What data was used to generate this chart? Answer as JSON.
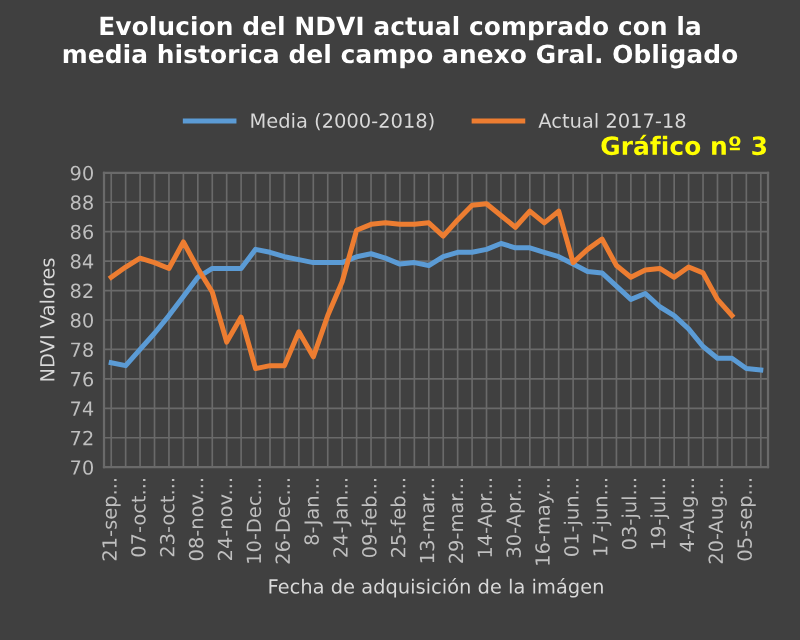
{
  "chart_data": {
    "type": "line",
    "title": "Evolucion del NDVI actual comprado con la\nmedia historica del campo anexo Gral. Obligado",
    "xlabel": "Fecha de adquisición de la imágen",
    "ylabel": "NDVI Valores",
    "annotations": [
      "Gráfico nº 3"
    ],
    "categories": [
      "21-sep...",
      null,
      "07-oct...",
      null,
      "23-oct...",
      null,
      "08-nov...",
      null,
      "24-nov...",
      null,
      "10-Dec...",
      null,
      "26-Dec...",
      null,
      "8-Jan...",
      null,
      "24-Jan...",
      null,
      "09-feb...",
      null,
      "25-feb...",
      null,
      "13-mar...",
      null,
      "29-mar...",
      null,
      "14-Apr...",
      null,
      "30-Apr...",
      null,
      "16-may...",
      null,
      "01-jun...",
      null,
      "17-jun...",
      null,
      "03-jul...",
      null,
      "19-jul...",
      null,
      "4-Aug...",
      null,
      "20-Aug...",
      null,
      "05-sep...",
      null
    ],
    "series": [
      {
        "name": "Media (2000-2018)",
        "color": "#5b9bd5",
        "values": [
          77.1,
          76.9,
          78.0,
          79.1,
          80.3,
          81.6,
          82.9,
          83.5,
          83.5,
          83.5,
          84.8,
          84.6,
          84.3,
          84.1,
          83.9,
          83.9,
          83.9,
          84.3,
          84.5,
          84.2,
          83.8,
          83.9,
          83.7,
          84.3,
          84.6,
          84.6,
          84.8,
          85.2,
          84.9,
          84.9,
          84.6,
          84.3,
          83.8,
          83.3,
          83.2,
          82.3,
          81.4,
          81.8,
          80.9,
          80.3,
          79.4,
          78.2,
          77.4,
          77.4,
          76.7,
          76.6
        ]
      },
      {
        "name": "Actual 2017-18",
        "color": "#ed7d31",
        "values": [
          82.9,
          83.6,
          84.2,
          83.9,
          83.5,
          85.3,
          83.5,
          81.9,
          78.5,
          80.2,
          76.7,
          76.9,
          76.9,
          79.2,
          77.5,
          80.3,
          82.6,
          86.1,
          86.5,
          86.6,
          86.5,
          86.5,
          86.6,
          85.7,
          86.8,
          87.8,
          87.9,
          87.1,
          86.3,
          87.4,
          86.6,
          87.4,
          83.9,
          84.8,
          85.5,
          83.7,
          82.9,
          83.4,
          83.5,
          82.9,
          83.6,
          83.2,
          81.4,
          80.3,
          null,
          null
        ]
      }
    ],
    "ylim": [
      70,
      90
    ],
    "yticks": [
      70,
      72,
      74,
      76,
      78,
      80,
      82,
      84,
      86,
      88,
      90
    ],
    "grid": true,
    "legend": "top",
    "marker": "none",
    "line_style": "solid"
  }
}
